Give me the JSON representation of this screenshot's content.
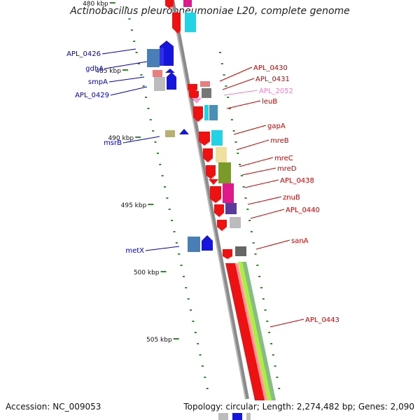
{
  "title": "Actinobacillus pleuropneumoniae L20, complete genome",
  "footer": {
    "accession": "Accession: NC_009053",
    "summary": "Topology: circular; Length: 2,274,482 bp; Genes: 2,090"
  },
  "scale_labels": [
    "480 kbp",
    "485 kbp",
    "490 kbp",
    "495 kbp",
    "500 kbp",
    "505 kbp"
  ],
  "colors": {
    "backbone": "#8a8a8a",
    "tick": "#2e8b2e",
    "reverse_strand_label": "#0000cc",
    "forward_strand_label": "#cc0000",
    "pseudo_label": "#ee82c8"
  },
  "genes_reverse": [
    {
      "label": "APL_0426",
      "color": "#1010e0"
    },
    {
      "label": "gdhA",
      "color": "#1010e0"
    },
    {
      "label": "smpA",
      "color": "#1010e0"
    },
    {
      "label": "APL_0429",
      "color": "#1010e0"
    },
    {
      "label": "msrB",
      "color": "#1010e0"
    },
    {
      "label": "metX",
      "color": "#1010e0"
    }
  ],
  "genes_forward": [
    {
      "label": "APL_0430",
      "color": "#ee1111"
    },
    {
      "label": "APL_0431",
      "color": "#ee1111"
    },
    {
      "label": "APL_2052",
      "color": "#f0a0d0"
    },
    {
      "label": "leuB",
      "color": "#ee1111"
    },
    {
      "label": "gapA",
      "color": "#ee1111"
    },
    {
      "label": "mreB",
      "color": "#ee1111"
    },
    {
      "label": "mreC",
      "color": "#ee1111"
    },
    {
      "label": "mreD",
      "color": "#ee1111"
    },
    {
      "label": "APL_0438",
      "color": "#ee1111"
    },
    {
      "label": "znuB",
      "color": "#ee1111"
    },
    {
      "label": "APL_0440",
      "color": "#ee1111"
    },
    {
      "label": "sanA",
      "color": "#ee1111"
    },
    {
      "label": "APL_0443",
      "color": "#ee1111"
    }
  ]
}
